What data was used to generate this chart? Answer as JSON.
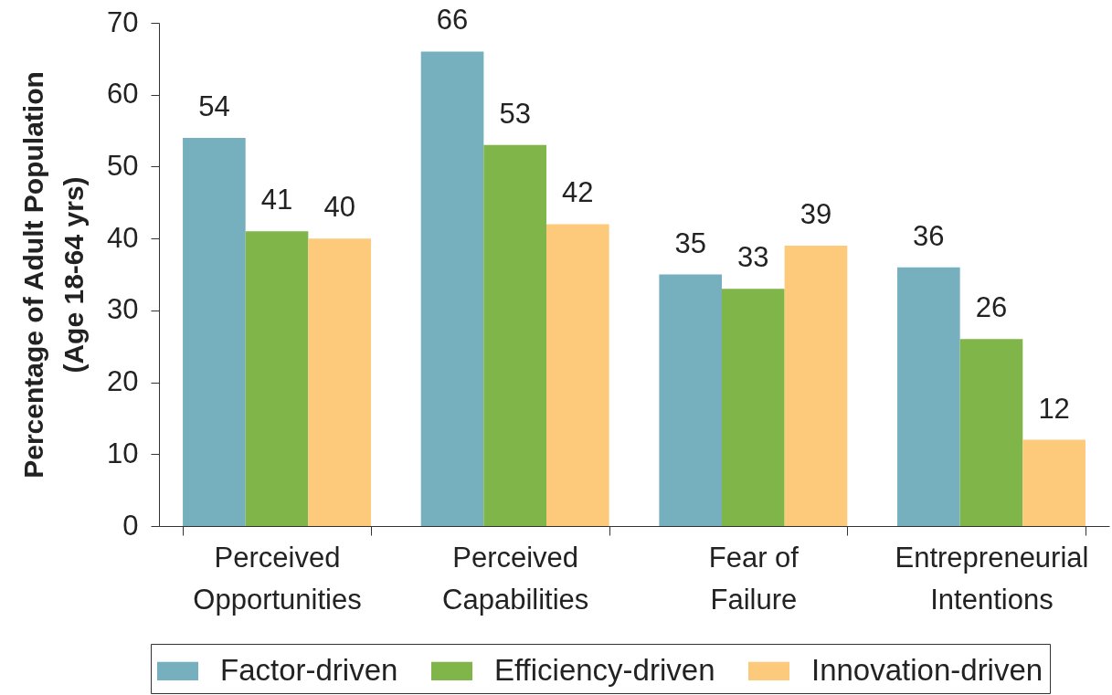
{
  "chart_data": {
    "type": "bar",
    "ylabel": "Percentage of Adult Population\n(Age 18-64 yrs)",
    "categories": [
      "Perceived\nOpportunities",
      "Perceived\nCapabilities",
      "Fear of\nFailure",
      "Entrepreneurial\nIntentions"
    ],
    "series": [
      {
        "name": "Factor-driven",
        "color": "#76b0bf",
        "values": [
          54,
          66,
          35,
          36
        ]
      },
      {
        "name": "Efficiency-driven",
        "color": "#80b54a",
        "values": [
          41,
          53,
          33,
          26
        ]
      },
      {
        "name": "Innovation-driven",
        "color": "#fdc97a",
        "values": [
          40,
          42,
          39,
          12
        ]
      }
    ],
    "ylim": [
      0,
      70
    ],
    "yticks": [
      0,
      10,
      20,
      30,
      40,
      50,
      60,
      70
    ],
    "data_labels": true,
    "legend": "bottom"
  }
}
